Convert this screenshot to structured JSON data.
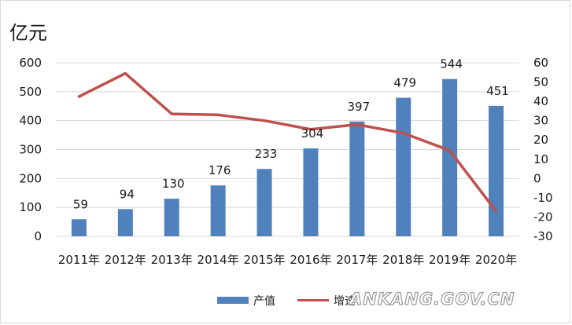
{
  "chart_data": {
    "type": "bar",
    "unit_label": "亿元",
    "categories": [
      "2011年",
      "2012年",
      "2013年",
      "2014年",
      "2015年",
      "2016年",
      "2017年",
      "2018年",
      "2019年",
      "2020年"
    ],
    "series": [
      {
        "name": "产值",
        "kind": "bar",
        "axis": "left",
        "color": "#4f81bd",
        "values": [
          59,
          94,
          130,
          176,
          233,
          304,
          397,
          479,
          544,
          451
        ]
      },
      {
        "name": "增速",
        "kind": "line",
        "axis": "right",
        "color": "#c0504d",
        "values": [
          42.5,
          54.5,
          33.5,
          33,
          30,
          25.5,
          28,
          23.5,
          14.5,
          -17
        ]
      }
    ],
    "ylim_left": [
      0,
      600
    ],
    "yticks_left": [
      "0",
      "100",
      "200",
      "300",
      "400",
      "500",
      "600"
    ],
    "ylim_right": [
      -30,
      60
    ],
    "yticks_right": [
      "-30",
      "-20",
      "-10",
      "0",
      "10",
      "20",
      "30",
      "40",
      "50",
      "60"
    ],
    "grid": true,
    "legend": "bottom"
  },
  "watermark": "ANKANG.GOV.CN"
}
